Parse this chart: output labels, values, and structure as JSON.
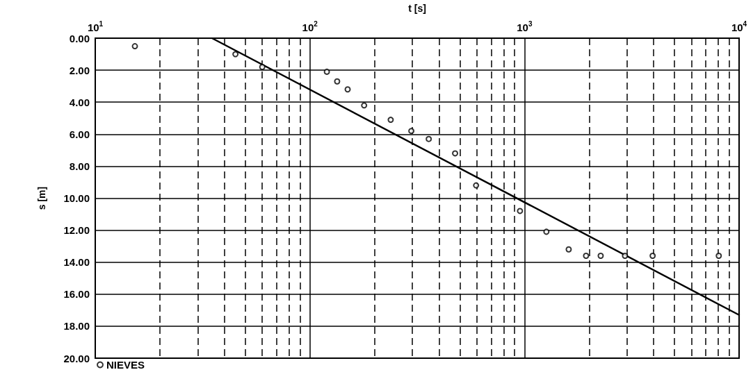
{
  "chart_data": {
    "type": "scatter",
    "xlabel": "t [s]",
    "ylabel": "s [m]",
    "log": "x",
    "grid": true,
    "legend": "bottom left",
    "marker": "circle",
    "xlim": [
      10,
      10000
    ],
    "ylim": [
      20,
      0
    ],
    "xticks": [
      {
        "value": 10,
        "label": "10$^{1}$"
      },
      {
        "value": 20,
        "label": null
      },
      {
        "value": 30,
        "label": null
      },
      {
        "value": 40,
        "label": null
      },
      {
        "value": 50,
        "label": null
      },
      {
        "value": 60,
        "label": null
      },
      {
        "value": 70,
        "label": null
      },
      {
        "value": 80,
        "label": null
      },
      {
        "value": 90,
        "label": null
      },
      {
        "value": 100,
        "label": "10$^{2}$"
      },
      {
        "value": 200,
        "label": null
      },
      {
        "value": 300,
        "label": null
      },
      {
        "value": 400,
        "label": null
      },
      {
        "value": 500,
        "label": null
      },
      {
        "value": 600,
        "label": null
      },
      {
        "value": 700,
        "label": null
      },
      {
        "value": 800,
        "label": null
      },
      {
        "value": 900,
        "label": null
      },
      {
        "value": 1000,
        "label": "10$^{3}$"
      },
      {
        "value": 2000,
        "label": null
      },
      {
        "value": 3000,
        "label": null
      },
      {
        "value": 4000,
        "label": null
      },
      {
        "value": 5000,
        "label": null
      },
      {
        "value": 6000,
        "label": null
      },
      {
        "value": 7000,
        "label": null
      },
      {
        "value": 8000,
        "label": null
      },
      {
        "value": 9000,
        "label": null
      },
      {
        "value": 10000,
        "label": "10$^{4}$"
      }
    ],
    "yticks": [
      {
        "value": 0,
        "label": "0.00"
      },
      {
        "value": 2,
        "label": "2.00"
      },
      {
        "value": 4,
        "label": "4.00"
      },
      {
        "value": 6,
        "label": "6.00"
      },
      {
        "value": 8,
        "label": "8.00"
      },
      {
        "value": 10,
        "label": "10.00"
      },
      {
        "value": 12,
        "label": "12.00"
      },
      {
        "value": 14,
        "label": "14.00"
      },
      {
        "value": 16,
        "label": "16.00"
      },
      {
        "value": 18,
        "label": "18.00"
      },
      {
        "value": 20,
        "label": "20.00"
      }
    ],
    "series": [
      {
        "name": "NIEVES",
        "color": "#000000",
        "x": [
          15.3,
          45,
          60,
          120,
          134,
          150,
          179,
          238,
          297,
          358,
          475,
          595,
          953,
          1265,
          1607,
          1936,
          2265,
          2940,
          3955,
          8040
        ],
        "values": [
          0.5,
          1.0,
          1.8,
          2.1,
          2.7,
          3.2,
          4.2,
          5.1,
          5.8,
          6.3,
          7.2,
          9.2,
          10.8,
          12.1,
          13.2,
          13.6,
          13.6,
          13.6,
          13.6,
          13.6
        ]
      },
      {
        "type": "line",
        "color": "#000000",
        "marker": "none",
        "line_style": "solid",
        "x": [
          35,
          10000
        ],
        "values": [
          0,
          17.3
        ]
      }
    ]
  }
}
